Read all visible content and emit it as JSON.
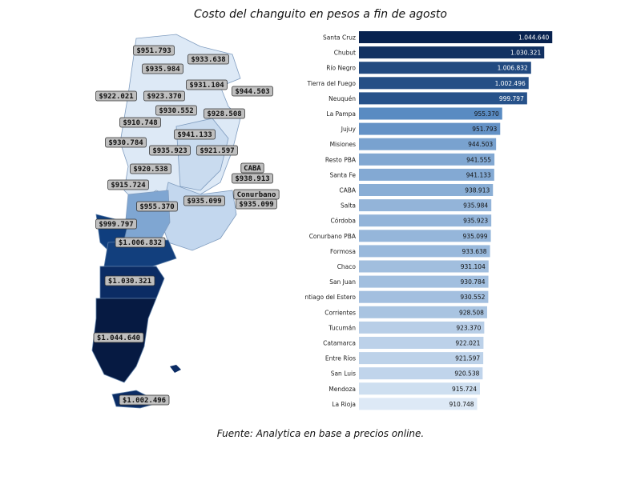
{
  "title": "Costo del changuito en pesos a fin de agosto",
  "source": "Fuente: Analytica en base a precios online.",
  "colors": {
    "darkest": "#08224f",
    "dark": "#0d3a7a",
    "mid": "#3f78b8",
    "light": "#a9c6e6",
    "lightest": "#dde9f6"
  },
  "chart_data": {
    "type": "bar",
    "orientation": "horizontal",
    "categories": [
      "Santa Cruz",
      "Chubut",
      "Río Negro",
      "Tierra del Fuego",
      "Neuquén",
      "La Pampa",
      "Jujuy",
      "Misiones",
      "Resto PBA",
      "Santa Fe",
      "CABA",
      "Salta",
      "Córdoba",
      "Conurbano PBA",
      "Formosa",
      "Chaco",
      "San Juan",
      "Santiago del Estero",
      "Corrientes",
      "Tucumán",
      "Catamarca",
      "Entre Ríos",
      "San Luis",
      "Mendoza",
      "La Rioja"
    ],
    "values": [
      1044640,
      1030321,
      1006832,
      1002496,
      999797,
      955370,
      951793,
      944503,
      941555,
      941133,
      938913,
      935984,
      935923,
      935099,
      933638,
      931104,
      930784,
      930552,
      928508,
      923370,
      922021,
      921597,
      920538,
      915724,
      910748
    ],
    "value_labels": [
      "1.044.640",
      "1.030.321",
      "1.006.832",
      "1.002.496",
      "999.797",
      "955.370",
      "951.793",
      "944.503",
      "941.555",
      "941.133",
      "938.913",
      "935.984",
      "935.923",
      "935.099",
      "933.638",
      "931.104",
      "930.784",
      "930.552",
      "928.508",
      "923.370",
      "922.021",
      "921.597",
      "920.538",
      "915.724",
      "910.748"
    ],
    "xlim": [
      700000,
      1050000
    ]
  },
  "map_labels": [
    "$951.793",
    "$933.638",
    "$935.984",
    "$931.104",
    "$944.503",
    "$922.021",
    "$923.370",
    "$930.552",
    "$928.508",
    "$910.748",
    "$941.133",
    "$930.784",
    "$935.923",
    "$921.597",
    "$920.538",
    "CABA",
    "$938.913",
    "$915.724",
    "Conurbano",
    "$935.099",
    "$955.370",
    "$935.099",
    "$999.797",
    "$1.006.832",
    "$1.030.321",
    "$1.044.640",
    "$1.002.496"
  ]
}
